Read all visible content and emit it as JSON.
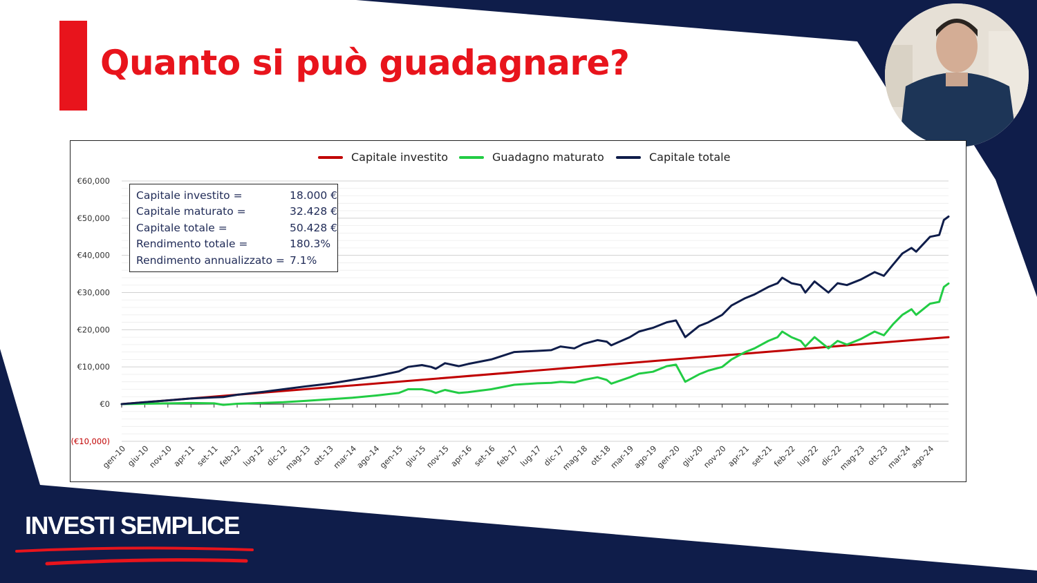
{
  "slide": {
    "title": "Quanto si può guadagnare?",
    "brand": "INVESTI SEMPLICE",
    "colors": {
      "navy": "#0f1d4a",
      "accent_red": "#e8141c",
      "white": "#ffffff"
    }
  },
  "presenter": {
    "icon": "presenter-webcam-icon"
  },
  "stats": [
    {
      "label": "Capitale investito =",
      "value": "18.000 €"
    },
    {
      "label": "Capitale maturato =",
      "value": "32.428 €"
    },
    {
      "label": "Capitale totale =",
      "value": "50.428 €"
    },
    {
      "label": "Rendimento totale =",
      "value": "180.3%"
    },
    {
      "label": "Rendimento annualizzato =",
      "value": "7.1%"
    }
  ],
  "chart_data": {
    "type": "line",
    "title": "",
    "xlabel": "",
    "ylabel": "",
    "ylim": [
      -10000,
      60000
    ],
    "grid": true,
    "legend_position": "top-center",
    "y_ticks": [
      {
        "value": -10000,
        "label": "(€10,000)",
        "color": "#c00000"
      },
      {
        "value": 0,
        "label": "€0"
      },
      {
        "value": 10000,
        "label": "€10,000"
      },
      {
        "value": 20000,
        "label": "€20,000"
      },
      {
        "value": 30000,
        "label": "€30,000"
      },
      {
        "value": 40000,
        "label": "€40,000"
      },
      {
        "value": 50000,
        "label": "€50,000"
      },
      {
        "value": 60000,
        "label": "€60,000"
      }
    ],
    "x_ticks": [
      "gen-10",
      "giu-10",
      "nov-10",
      "apr-11",
      "set-11",
      "feb-12",
      "lug-12",
      "dic-12",
      "mag-13",
      "ott-13",
      "mar-14",
      "ago-14",
      "gen-15",
      "giu-15",
      "nov-15",
      "apr-16",
      "set-16",
      "feb-17",
      "lug-17",
      "dic-17",
      "mag-18",
      "ott-18",
      "mar-19",
      "ago-19",
      "gen-20",
      "giu-20",
      "nov-20",
      "apr-21",
      "set-21",
      "feb-22",
      "lug-22",
      "dic-22",
      "mag-23",
      "ott-23",
      "mar-24",
      "ago-24"
    ],
    "x_range": [
      "gen-10",
      "dic-24"
    ],
    "series": [
      {
        "name": "Capitale investito",
        "color": "#c00000",
        "points": [
          [
            "gen-10",
            0
          ],
          [
            "dic-24",
            18000
          ]
        ]
      },
      {
        "name": "Guadagno maturato",
        "color": "#22cc44",
        "points": [
          [
            "gen-10",
            0
          ],
          [
            "giu-10",
            100
          ],
          [
            "nov-10",
            200
          ],
          [
            "apr-11",
            300
          ],
          [
            "set-11",
            200
          ],
          [
            "nov-11",
            -200
          ],
          [
            "feb-12",
            100
          ],
          [
            "lug-12",
            300
          ],
          [
            "dic-12",
            500
          ],
          [
            "mag-13",
            900
          ],
          [
            "ott-13",
            1300
          ],
          [
            "mar-14",
            1700
          ],
          [
            "ago-14",
            2300
          ],
          [
            "gen-15",
            3000
          ],
          [
            "mar-15",
            4000
          ],
          [
            "giu-15",
            4000
          ],
          [
            "ago-15",
            3500
          ],
          [
            "set-15",
            3000
          ],
          [
            "nov-15",
            3800
          ],
          [
            "feb-16",
            3000
          ],
          [
            "apr-16",
            3200
          ],
          [
            "set-16",
            4000
          ],
          [
            "feb-17",
            5200
          ],
          [
            "lug-17",
            5600
          ],
          [
            "ott-17",
            5700
          ],
          [
            "dic-17",
            6000
          ],
          [
            "mar-18",
            5800
          ],
          [
            "mag-18",
            6500
          ],
          [
            "ago-18",
            7200
          ],
          [
            "ott-18",
            6500
          ],
          [
            "nov-18",
            5500
          ],
          [
            "mar-19",
            7200
          ],
          [
            "mag-19",
            8200
          ],
          [
            "ago-19",
            8700
          ],
          [
            "nov-19",
            10200
          ],
          [
            "gen-20",
            10600
          ],
          [
            "mar-20",
            6000
          ],
          [
            "giu-20",
            8000
          ],
          [
            "ago-20",
            9000
          ],
          [
            "nov-20",
            10000
          ],
          [
            "gen-21",
            12000
          ],
          [
            "apr-21",
            14000
          ],
          [
            "giu-21",
            15000
          ],
          [
            "set-21",
            17000
          ],
          [
            "nov-21",
            18000
          ],
          [
            "dic-21",
            19500
          ],
          [
            "feb-22",
            18000
          ],
          [
            "apr-22",
            17000
          ],
          [
            "mag-22",
            15500
          ],
          [
            "lug-22",
            18000
          ],
          [
            "ott-22",
            15000
          ],
          [
            "dic-22",
            17000
          ],
          [
            "feb-23",
            16000
          ],
          [
            "mag-23",
            17500
          ],
          [
            "ago-23",
            19500
          ],
          [
            "ott-23",
            18500
          ],
          [
            "dic-23",
            21500
          ],
          [
            "feb-24",
            24000
          ],
          [
            "apr-24",
            25500
          ],
          [
            "mag-24",
            24000
          ],
          [
            "ago-24",
            27000
          ],
          [
            "ott-24",
            27500
          ],
          [
            "nov-24",
            31500
          ],
          [
            "dic-24",
            32428
          ]
        ]
      },
      {
        "name": "Capitale totale",
        "color": "#0f1d4a",
        "points": [
          [
            "gen-10",
            0
          ],
          [
            "giu-10",
            500
          ],
          [
            "nov-10",
            1000
          ],
          [
            "apr-11",
            1500
          ],
          [
            "set-11",
            1800
          ],
          [
            "nov-11",
            1900
          ],
          [
            "feb-12",
            2500
          ],
          [
            "lug-12",
            3200
          ],
          [
            "dic-12",
            4000
          ],
          [
            "mag-13",
            4800
          ],
          [
            "ott-13",
            5500
          ],
          [
            "mar-14",
            6500
          ],
          [
            "ago-14",
            7500
          ],
          [
            "gen-15",
            8800
          ],
          [
            "mar-15",
            10000
          ],
          [
            "giu-15",
            10500
          ],
          [
            "ago-15",
            10000
          ],
          [
            "set-15",
            9500
          ],
          [
            "nov-15",
            11000
          ],
          [
            "feb-16",
            10200
          ],
          [
            "apr-16",
            10800
          ],
          [
            "set-16",
            12000
          ],
          [
            "feb-17",
            14000
          ],
          [
            "lug-17",
            14300
          ],
          [
            "ott-17",
            14500
          ],
          [
            "dic-17",
            15500
          ],
          [
            "mar-18",
            15000
          ],
          [
            "mag-18",
            16200
          ],
          [
            "ago-18",
            17200
          ],
          [
            "ott-18",
            16800
          ],
          [
            "nov-18",
            15800
          ],
          [
            "mar-19",
            18000
          ],
          [
            "mag-19",
            19500
          ],
          [
            "ago-19",
            20500
          ],
          [
            "nov-19",
            22000
          ],
          [
            "gen-20",
            22500
          ],
          [
            "mar-20",
            18000
          ],
          [
            "giu-20",
            21000
          ],
          [
            "ago-20",
            22000
          ],
          [
            "nov-20",
            24000
          ],
          [
            "gen-21",
            26500
          ],
          [
            "apr-21",
            28500
          ],
          [
            "giu-21",
            29500
          ],
          [
            "set-21",
            31500
          ],
          [
            "nov-21",
            32500
          ],
          [
            "dic-21",
            34000
          ],
          [
            "feb-22",
            32500
          ],
          [
            "apr-22",
            32000
          ],
          [
            "mag-22",
            30000
          ],
          [
            "lug-22",
            33000
          ],
          [
            "ott-22",
            30000
          ],
          [
            "dic-22",
            32500
          ],
          [
            "feb-23",
            32000
          ],
          [
            "mag-23",
            33500
          ],
          [
            "ago-23",
            35500
          ],
          [
            "ott-23",
            34500
          ],
          [
            "dic-23",
            37500
          ],
          [
            "feb-24",
            40500
          ],
          [
            "apr-24",
            42000
          ],
          [
            "mag-24",
            41000
          ],
          [
            "ago-24",
            45000
          ],
          [
            "ott-24",
            45500
          ],
          [
            "nov-24",
            49500
          ],
          [
            "dic-24",
            50428
          ]
        ]
      }
    ]
  }
}
